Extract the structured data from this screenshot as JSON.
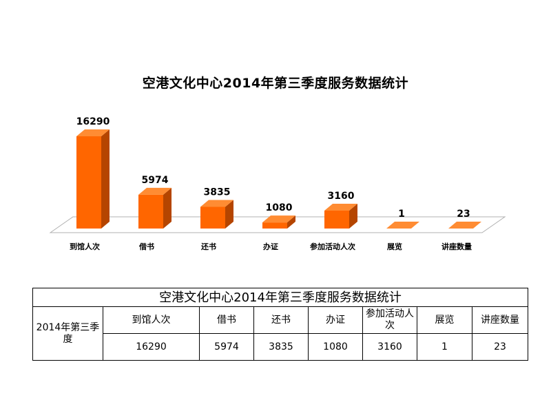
{
  "title": "空港文化中心2014年第三季度服务数据统计",
  "chart_data": {
    "type": "bar",
    "title": "空港文化中心2014年第三季度服务数据统计",
    "categories": [
      "到馆人次",
      "借书",
      "还书",
      "办证",
      "参加活动人次",
      "展览",
      "讲座数量"
    ],
    "values": [
      16290,
      5974,
      3835,
      1080,
      3160,
      1,
      23
    ],
    "ylim": [
      0,
      16290
    ],
    "grid": false,
    "legend": "none",
    "style": "3d",
    "colors": {
      "front": "#ff6600",
      "top": "#ff8c33",
      "side": "#b54500",
      "floor": "#ffffff",
      "floor_stroke": "#b0b0b0"
    }
  },
  "table": {
    "caption": "空港文化中心2014年第三季度服务数据统计",
    "row_header": "2014年第三季度",
    "headers": [
      "到馆人次",
      "借书",
      "还书",
      "办证",
      "参加活动人次",
      "展览",
      "讲座数量"
    ],
    "values": [
      "16290",
      "5974",
      "3835",
      "1080",
      "3160",
      "1",
      "23"
    ]
  }
}
